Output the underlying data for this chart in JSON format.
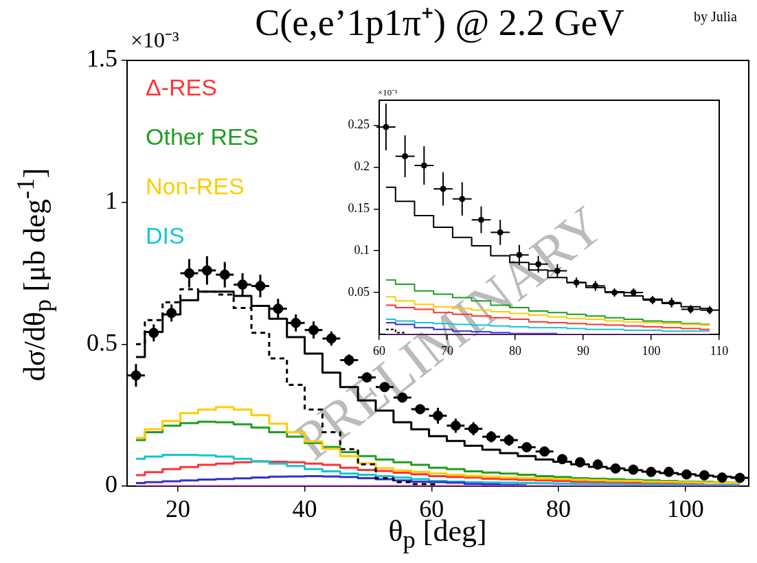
{
  "chart_data": [
    {
      "type": "step",
      "title": "C(e,e’1p1π⁺) @ 2.2 GeV",
      "xlabel": "θ$_{p}$ [deg]",
      "ylabel": "dσ/dθ$_{p}$ [μb deg$^{-1}$]",
      "annotations": [
        "×10⁻³",
        "by Julia",
        "PRELIMINARY"
      ],
      "x": [
        13.4,
        16.2,
        19.0,
        21.8,
        24.6,
        27.4,
        30.2,
        33.0,
        35.8,
        38.6,
        41.4,
        44.2,
        47.0,
        49.8,
        52.6,
        55.4,
        58.2,
        61.0,
        63.8,
        66.6,
        69.4,
        72.2,
        75.0,
        77.8,
        80.6,
        83.4,
        86.2,
        89.0,
        91.8,
        94.6,
        97.4,
        100.2,
        103.0,
        105.8,
        108.6
      ],
      "xlim": [
        12,
        110
      ],
      "xticks": [
        20,
        40,
        60,
        80,
        100
      ],
      "ylim": [
        0,
        1.5
      ],
      "yticks": [
        0,
        0.5,
        1,
        1.5
      ],
      "legend": "top left",
      "series": [
        {
          "name": "Δ-RES",
          "color": "#ff3333",
          "values": [
            0.039,
            0.049,
            0.06,
            0.067,
            0.075,
            0.079,
            0.084,
            0.087,
            0.086,
            0.084,
            0.079,
            0.075,
            0.065,
            0.057,
            0.053,
            0.047,
            0.042,
            0.035,
            0.032,
            0.03,
            0.026,
            0.024,
            0.022,
            0.02,
            0.018,
            0.015,
            0.014,
            0.013,
            0.012,
            0.011,
            0.01,
            0.009,
            0.008,
            null,
            null
          ]
        },
        {
          "name": "Other RES",
          "color": "#1f9e1f",
          "values": [
            0.162,
            0.19,
            0.213,
            0.222,
            0.227,
            0.225,
            0.218,
            0.206,
            0.19,
            0.174,
            0.152,
            0.138,
            0.12,
            0.106,
            0.094,
            0.084,
            0.075,
            0.065,
            0.06,
            0.052,
            0.048,
            0.044,
            0.04,
            0.035,
            0.032,
            0.028,
            0.026,
            0.024,
            0.022,
            0.02,
            0.018,
            0.016,
            0.015,
            0.013,
            0.012
          ]
        },
        {
          "name": "Non-RES",
          "color": "#ffcc00",
          "values": [
            0.17,
            0.2,
            0.229,
            0.257,
            0.27,
            0.278,
            0.27,
            0.25,
            0.22,
            0.19,
            0.157,
            0.131,
            0.106,
            0.08,
            0.063,
            0.055,
            0.05,
            0.045,
            0.04,
            0.036,
            0.033,
            0.031,
            0.029,
            0.027,
            0.025,
            0.023,
            0.021,
            0.019,
            0.018,
            0.016,
            0.015,
            0.014,
            0.013,
            0.012,
            0.011
          ]
        },
        {
          "name": "DIS",
          "color": "#11c6d6",
          "values": [
            0.096,
            0.104,
            0.11,
            0.11,
            0.108,
            0.104,
            0.096,
            0.087,
            0.079,
            0.071,
            0.06,
            0.052,
            0.044,
            0.04,
            0.035,
            0.03,
            0.025,
            0.018,
            0.016,
            0.014,
            0.013,
            0.012,
            0.011,
            0.01,
            0.009,
            0.008,
            0.008,
            0.007,
            0.006,
            0.006,
            0.005,
            0.005,
            0.004,
            0.004,
            0.004
          ]
        },
        {
          "color": "#3333cc",
          "values": [
            0.011,
            0.014,
            0.017,
            0.02,
            0.023,
            0.025,
            0.027,
            0.03,
            0.033,
            0.034,
            0.035,
            0.034,
            0.032,
            0.028,
            0.024,
            0.02,
            0.016,
            0.014,
            0.012,
            0.008,
            0.006,
            0.004,
            0.003,
            null,
            null,
            null,
            null,
            null,
            null,
            null,
            null,
            null,
            null,
            null,
            null
          ]
        },
        {
          "color": "#b040c8",
          "values": [
            0,
            0,
            0,
            0,
            0,
            0,
            0,
            0,
            0,
            0,
            0,
            0,
            0,
            0,
            0,
            0,
            0,
            0,
            0,
            0,
            0,
            0,
            0,
            0,
            0,
            0,
            0,
            0,
            0,
            0,
            0,
            0,
            0,
            0,
            0
          ]
        },
        {
          "color": "#000000",
          "line_style": "dotted",
          "values": [
            0.5,
            0.585,
            0.648,
            0.694,
            0.685,
            0.675,
            0.628,
            0.54,
            0.45,
            0.357,
            0.27,
            0.19,
            0.13,
            0.077,
            0.028,
            0.014,
            0.007,
            0.006,
            null,
            null,
            null,
            null,
            null,
            null,
            null,
            null,
            null,
            null,
            null,
            null,
            null,
            null,
            null,
            null,
            null
          ]
        },
        {
          "color": "#000000",
          "values": [
            0.455,
            0.543,
            0.605,
            0.655,
            0.685,
            0.685,
            0.67,
            0.635,
            0.59,
            0.525,
            0.467,
            0.4,
            0.349,
            0.302,
            0.266,
            0.225,
            0.2,
            0.176,
            0.159,
            0.142,
            0.128,
            0.116,
            0.106,
            0.094,
            0.086,
            0.077,
            0.068,
            0.062,
            0.056,
            0.051,
            0.046,
            0.042,
            0.037,
            0.033,
            0.031
          ]
        },
        {
          "type": "scatter",
          "marker": "circle",
          "color": "#000000",
          "values": [
            0.39,
            0.54,
            0.61,
            0.75,
            0.76,
            0.745,
            0.71,
            0.705,
            0.625,
            0.575,
            0.55,
            0.52,
            0.444,
            0.383,
            0.349,
            0.312,
            0.271,
            0.248,
            0.213,
            0.202,
            0.174,
            0.162,
            0.137,
            0.122,
            0.095,
            0.084,
            0.076,
            0.062,
            0.058,
            0.05,
            0.05,
            0.041,
            0.038,
            0.03,
            0.029
          ],
          "errors": [
            0.04,
            0.03,
            0.03,
            0.05,
            0.05,
            0.045,
            0.04,
            0.04,
            0.035,
            0.03,
            0.03,
            0.025,
            0.02,
            0.015,
            0.015,
            0.012,
            0.012,
            0.028,
            0.025,
            0.023,
            0.02,
            0.02,
            0.016,
            0.015,
            0.012,
            0.01,
            0.008,
            0.006,
            0.006,
            0.005,
            0.005,
            0.005,
            0.006,
            0.005,
            0.005
          ],
          "xerrors": [
            1.4,
            null,
            null,
            1.4,
            1.4,
            1.4,
            1.4,
            1.4,
            1.4,
            1.4,
            1.4,
            1.4,
            1.4,
            1.4,
            1.4,
            1.4,
            1.4,
            1.4,
            1.4,
            1.4,
            1.4,
            1.4,
            1.4,
            1.4,
            null,
            null,
            null,
            null,
            null,
            null,
            null,
            null,
            null,
            null,
            1.4
          ]
        }
      ]
    },
    {
      "type": "step",
      "annotations": [
        "×10⁻³"
      ],
      "x": [
        61.0,
        63.8,
        66.6,
        69.4,
        72.2,
        75.0,
        77.8,
        80.6,
        83.4,
        86.2,
        89.0,
        91.8,
        94.6,
        97.4,
        100.2,
        103.0,
        105.8,
        108.6
      ],
      "xlim": [
        60,
        110
      ],
      "xticks": [
        60,
        70,
        80,
        90,
        100,
        110
      ],
      "ylim": [
        0,
        0.28
      ],
      "yticks": [
        0.05,
        0.1,
        0.15,
        0.2,
        0.25
      ],
      "series": [
        {
          "color": "#ff3333",
          "values": [
            0.035,
            0.032,
            0.03,
            0.026,
            0.024,
            0.022,
            0.02,
            0.018,
            0.015,
            0.014,
            0.013,
            0.012,
            0.011,
            0.01,
            0.009,
            0.008,
            0.007,
            0.006
          ]
        },
        {
          "color": "#1f9e1f",
          "values": [
            0.065,
            0.06,
            0.052,
            0.048,
            0.044,
            0.04,
            0.035,
            0.032,
            0.028,
            0.026,
            0.024,
            0.022,
            0.02,
            0.018,
            0.016,
            0.015,
            0.013,
            0.012
          ]
        },
        {
          "color": "#ffcc00",
          "values": [
            0.045,
            0.04,
            0.036,
            0.033,
            0.031,
            0.029,
            0.027,
            0.025,
            0.023,
            0.021,
            0.019,
            0.018,
            0.016,
            0.015,
            0.014,
            0.013,
            0.012,
            0.011
          ]
        },
        {
          "color": "#11c6d6",
          "values": [
            0.018,
            0.016,
            0.014,
            0.013,
            0.012,
            0.011,
            0.01,
            0.009,
            0.008,
            0.008,
            0.007,
            0.006,
            0.006,
            0.005,
            0.005,
            0.004,
            0.004,
            0.004
          ]
        },
        {
          "color": "#3333cc",
          "values": [
            0.014,
            0.012,
            0.008,
            0.006,
            0.004,
            0.003,
            0.002,
            0.001,
            0.001,
            0.001,
            null,
            null,
            null,
            null,
            null,
            null,
            null,
            null
          ]
        },
        {
          "color": "#b040c8",
          "values": [
            0,
            0,
            0,
            0,
            0,
            0,
            0,
            0,
            0,
            0,
            0,
            0,
            0,
            0,
            0,
            0,
            0,
            0
          ]
        },
        {
          "color": "#000000",
          "line_style": "dotted",
          "values": [
            0.006,
            0.002,
            null,
            null,
            null,
            null,
            null,
            null,
            null,
            null,
            null,
            null,
            null,
            null,
            null,
            null,
            null,
            null
          ]
        },
        {
          "color": "#000000",
          "values": [
            0.176,
            0.159,
            0.142,
            0.128,
            0.116,
            0.106,
            0.094,
            0.086,
            0.077,
            0.068,
            0.062,
            0.056,
            0.051,
            0.046,
            0.042,
            0.037,
            0.033,
            0.031
          ]
        },
        {
          "type": "scatter",
          "marker": "circle",
          "color": "#000000",
          "values": [
            0.248,
            0.213,
            0.202,
            0.174,
            0.162,
            0.137,
            0.122,
            0.095,
            0.084,
            0.076,
            0.062,
            0.058,
            0.05,
            0.05,
            0.041,
            0.038,
            0.03,
            0.029
          ],
          "errors": [
            0.028,
            0.025,
            0.023,
            0.02,
            0.02,
            0.016,
            0.015,
            0.012,
            0.01,
            0.008,
            0.006,
            0.006,
            0.005,
            0.005,
            0.005,
            0.006,
            0.005,
            0.005
          ],
          "xerrors": [
            1.4,
            1.4,
            1.4,
            1.4,
            1.4,
            1.4,
            1.4,
            1.4,
            1.4,
            1.4,
            1.4,
            1.4,
            1.4,
            1.4,
            1.4,
            1.4,
            1.4,
            1.4
          ]
        }
      ]
    }
  ]
}
